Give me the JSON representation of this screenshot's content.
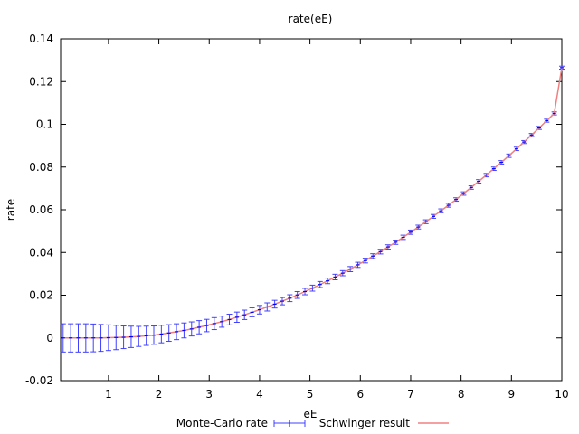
{
  "chart_data": {
    "type": "scatter",
    "title": "rate(eE)",
    "xlabel": "eE",
    "ylabel": "rate",
    "xlim": [
      0.05,
      10
    ],
    "ylim": [
      -0.02,
      0.14
    ],
    "x_ticks": [
      1,
      2,
      3,
      4,
      5,
      6,
      7,
      8,
      9,
      10
    ],
    "x_tick_labels": [
      "1",
      "2",
      "3",
      "4",
      "5",
      "6",
      "7",
      "8",
      "9",
      "10"
    ],
    "y_ticks": [
      -0.02,
      0,
      0.02,
      0.04,
      0.06,
      0.08,
      0.1,
      0.12,
      0.14
    ],
    "y_tick_labels": [
      "-0.02",
      "0",
      "0.02",
      "0.04",
      "0.06",
      "0.08",
      "0.1",
      "0.12",
      "0.14"
    ],
    "grid": false,
    "legend_position": "bottom",
    "series": [
      {
        "name": "Monte-Carlo rate",
        "style": "points-with-errorbars",
        "color": "#0000ff",
        "errorbar_color": "#4040ff",
        "x": [
          0.1,
          0.25,
          0.4,
          0.55,
          0.7,
          0.85,
          1.0,
          1.15,
          1.3,
          1.45,
          1.6,
          1.75,
          1.9,
          2.05,
          2.2,
          2.35,
          2.5,
          2.65,
          2.8,
          2.95,
          3.1,
          3.25,
          3.4,
          3.55,
          3.7,
          3.85,
          4.0,
          4.15,
          4.3,
          4.45,
          4.6,
          4.75,
          4.9,
          5.05,
          5.2,
          5.35,
          5.5,
          5.65,
          5.8,
          5.95,
          6.1,
          6.25,
          6.4,
          6.55,
          6.7,
          6.85,
          7.0,
          7.15,
          7.3,
          7.45,
          7.6,
          7.75,
          7.9,
          8.05,
          8.2,
          8.35,
          8.5,
          8.65,
          8.8,
          8.95,
          9.1,
          9.25,
          9.4,
          9.55,
          9.7,
          9.85,
          10.0
        ],
        "y": [
          0.0,
          0.0,
          0.0,
          0.0,
          0.0,
          0.0,
          0.0001,
          0.0002,
          0.0003,
          0.0005,
          0.0007,
          0.001,
          0.0013,
          0.0018,
          0.0023,
          0.0029,
          0.0035,
          0.0042,
          0.005,
          0.0058,
          0.0067,
          0.0076,
          0.0086,
          0.0097,
          0.0108,
          0.012,
          0.0132,
          0.0145,
          0.0158,
          0.0172,
          0.0186,
          0.0201,
          0.0217,
          0.0233,
          0.025,
          0.0267,
          0.0285,
          0.0303,
          0.0322,
          0.0342,
          0.0362,
          0.0383,
          0.0404,
          0.0426,
          0.0448,
          0.0471,
          0.0495,
          0.0519,
          0.0544,
          0.0569,
          0.0595,
          0.0621,
          0.0648,
          0.0676,
          0.0704,
          0.0733,
          0.0762,
          0.0792,
          0.0822,
          0.0853,
          0.0885,
          0.0917,
          0.095,
          0.0983,
          0.1017,
          0.1051,
          0.1265
        ],
        "yerr": [
          0.0066,
          0.0066,
          0.0066,
          0.0066,
          0.0065,
          0.0063,
          0.006,
          0.0057,
          0.0053,
          0.005,
          0.0047,
          0.0045,
          0.0043,
          0.0041,
          0.0039,
          0.0037,
          0.0035,
          0.0033,
          0.0031,
          0.0029,
          0.0028,
          0.0026,
          0.0025,
          0.0024,
          0.0022,
          0.0021,
          0.002,
          0.0019,
          0.0018,
          0.0017,
          0.0016,
          0.0016,
          0.0015,
          0.0014,
          0.0014,
          0.0013,
          0.0013,
          0.0012,
          0.0012,
          0.0012,
          0.0011,
          0.0011,
          0.0011,
          0.001,
          0.001,
          0.001,
          0.001,
          0.0009,
          0.0009,
          0.0009,
          0.0009,
          0.0009,
          0.0008,
          0.0008,
          0.0008,
          0.0008,
          0.0008,
          0.0008,
          0.0008,
          0.0008,
          0.0008,
          0.0007,
          0.0007,
          0.0007,
          0.0007,
          0.0007,
          0.0007
        ]
      },
      {
        "name": "Schwinger result",
        "style": "line",
        "color": "#f08080",
        "x": [
          0.1,
          0.25,
          0.4,
          0.55,
          0.7,
          0.85,
          1.0,
          1.15,
          1.3,
          1.45,
          1.6,
          1.75,
          1.9,
          2.05,
          2.2,
          2.35,
          2.5,
          2.65,
          2.8,
          2.95,
          3.1,
          3.25,
          3.4,
          3.55,
          3.7,
          3.85,
          4.0,
          4.15,
          4.3,
          4.45,
          4.6,
          4.75,
          4.9,
          5.05,
          5.2,
          5.35,
          5.5,
          5.65,
          5.8,
          5.95,
          6.1,
          6.25,
          6.4,
          6.55,
          6.7,
          6.85,
          7.0,
          7.15,
          7.3,
          7.45,
          7.6,
          7.75,
          7.9,
          8.05,
          8.2,
          8.35,
          8.5,
          8.65,
          8.8,
          8.95,
          9.1,
          9.25,
          9.4,
          9.55,
          9.7,
          9.85,
          10.0
        ],
        "y": [
          0.0,
          0.0,
          0.0,
          0.0,
          0.0,
          0.0,
          0.0001,
          0.0002,
          0.0003,
          0.0005,
          0.0007,
          0.001,
          0.0013,
          0.0018,
          0.0023,
          0.0029,
          0.0035,
          0.0042,
          0.005,
          0.0058,
          0.0067,
          0.0076,
          0.0086,
          0.0097,
          0.0108,
          0.012,
          0.0132,
          0.0145,
          0.0158,
          0.0172,
          0.0186,
          0.0201,
          0.0217,
          0.0233,
          0.025,
          0.0267,
          0.0285,
          0.0303,
          0.0322,
          0.0342,
          0.0362,
          0.0383,
          0.0404,
          0.0426,
          0.0448,
          0.0471,
          0.0495,
          0.0519,
          0.0544,
          0.0569,
          0.0595,
          0.0621,
          0.0648,
          0.0676,
          0.0704,
          0.0733,
          0.0762,
          0.0792,
          0.0822,
          0.0853,
          0.0885,
          0.0917,
          0.095,
          0.0983,
          0.1017,
          0.1051,
          0.1265
        ]
      }
    ]
  }
}
